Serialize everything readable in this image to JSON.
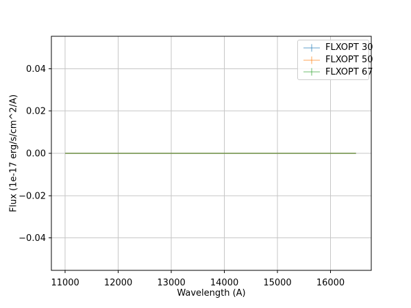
{
  "figure": {
    "background": "#ffffff"
  },
  "chart_data": {
    "type": "line",
    "title": "",
    "xlabel": "Wavelength (A)",
    "ylabel": "Flux (1e-17 erg/s/cm^2/A)",
    "xlim": [
      10740,
      16768
    ],
    "ylim": [
      -0.0553,
      0.0553
    ],
    "xticks": [
      11000,
      12000,
      13000,
      14000,
      15000,
      16000
    ],
    "xtick_labels": [
      "11000",
      "12000",
      "13000",
      "14000",
      "15000",
      "16000"
    ],
    "yticks": [
      -0.04,
      -0.02,
      0.0,
      0.02,
      0.04
    ],
    "ytick_labels": [
      "−0.04",
      "−0.02",
      "0.00",
      "0.02",
      "0.04"
    ],
    "grid": true,
    "legend": {
      "position": "upper right",
      "entries": [
        "FLXOPT 30",
        "FLXOPT 50",
        "FLXOPT 67"
      ]
    },
    "colors": {
      "grid": "#c6c6c6",
      "axis": "#000000",
      "text": "#000000",
      "blended_line": "#8aa766"
    },
    "series": [
      {
        "name": "FLXOPT 30",
        "color": "#1f77b4",
        "opacity": 0.4,
        "marker": "errorbar",
        "x": [
          11000,
          16480
        ],
        "y": [
          0,
          0
        ]
      },
      {
        "name": "FLXOPT 50",
        "color": "#ff7f0e",
        "opacity": 0.4,
        "marker": "errorbar",
        "x": [
          11000,
          16480
        ],
        "y": [
          0,
          0
        ]
      },
      {
        "name": "FLXOPT 67",
        "color": "#2ca02c",
        "opacity": 0.4,
        "marker": "errorbar",
        "x": [
          11000,
          16480
        ],
        "y": [
          0,
          0
        ]
      }
    ]
  }
}
